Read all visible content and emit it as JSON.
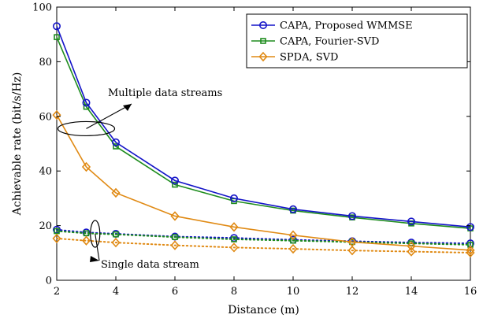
{
  "chart_data": {
    "type": "line",
    "xlabel": "Distance (m)",
    "ylabel": "Achievable rate (bit/s/Hz)",
    "xlim": [
      2,
      16
    ],
    "ylim": [
      0,
      100
    ],
    "xticks": [
      2,
      4,
      6,
      8,
      10,
      12,
      14,
      16
    ],
    "yticks": [
      0,
      20,
      40,
      60,
      80,
      100
    ],
    "grid": false,
    "legend_position": "top-right",
    "legend": [
      {
        "label": "CAPA, Proposed WMMSE",
        "color": "#1414c8",
        "marker": "circle"
      },
      {
        "label": "CAPA, Fourier-SVD",
        "color": "#1e8c1e",
        "marker": "square"
      },
      {
        "label": "SPDA, SVD",
        "color": "#e08a14",
        "marker": "diamond"
      }
    ],
    "x": [
      2,
      3,
      4,
      6,
      8,
      10,
      12,
      14,
      16
    ],
    "series": [
      {
        "group": "multiple",
        "legend_index": 0,
        "style": "solid",
        "color": "#1414c8",
        "marker": "circle",
        "values": [
          93.0,
          65.0,
          50.5,
          36.5,
          30.0,
          26.0,
          23.5,
          21.5,
          19.5
        ]
      },
      {
        "group": "multiple",
        "legend_index": 1,
        "style": "solid",
        "color": "#1e8c1e",
        "marker": "square",
        "values": [
          89.0,
          63.5,
          49.0,
          35.0,
          29.0,
          25.5,
          23.0,
          20.8,
          19.0
        ]
      },
      {
        "group": "multiple",
        "legend_index": 2,
        "style": "solid",
        "color": "#e08a14",
        "marker": "diamond",
        "values": [
          60.5,
          41.5,
          32.0,
          23.5,
          19.5,
          16.5,
          14.0,
          12.5,
          11.0
        ]
      },
      {
        "group": "single",
        "legend_index": 0,
        "style": "dotted",
        "color": "#1414c8",
        "marker": "circle",
        "values": [
          18.5,
          17.5,
          17.0,
          16.0,
          15.5,
          14.8,
          14.3,
          13.8,
          13.5
        ]
      },
      {
        "group": "single",
        "legend_index": 1,
        "style": "dotted",
        "color": "#1e8c1e",
        "marker": "square",
        "values": [
          18.0,
          17.2,
          16.8,
          15.8,
          15.0,
          14.5,
          14.0,
          13.5,
          13.0
        ]
      },
      {
        "group": "single",
        "legend_index": 2,
        "style": "dotted",
        "color": "#e08a14",
        "marker": "diamond",
        "values": [
          15.3,
          14.5,
          13.8,
          12.8,
          12.0,
          11.5,
          10.9,
          10.5,
          10.1
        ]
      }
    ],
    "annotations": [
      {
        "text": "Multiple data streams",
        "ellipse_center": [
          3.0,
          55.5
        ],
        "arrow_to": [
          3.0,
          55.5
        ]
      },
      {
        "text": "Single data stream",
        "ellipse_center": [
          3.3,
          17.0
        ],
        "arrow_to": [
          3.3,
          17.0
        ]
      }
    ]
  }
}
